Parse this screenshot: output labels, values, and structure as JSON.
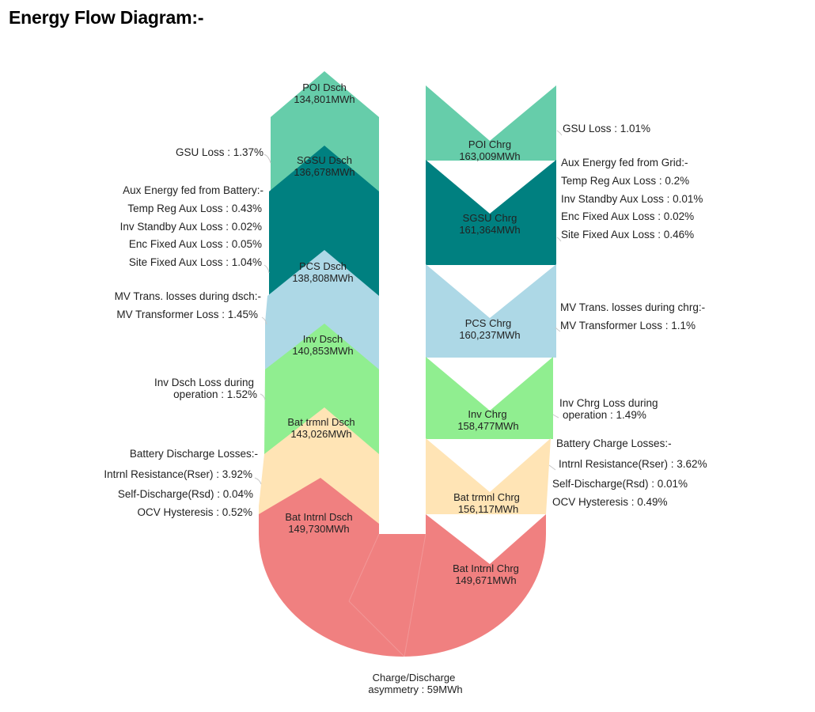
{
  "title": "Energy Flow Diagram:-",
  "colors": {
    "poi": "#66CDAA",
    "sgsu": "#008080",
    "pcs": "#ADD8E6",
    "inv": "#90EE90",
    "bat_trmnl": "#FFE4B5",
    "bat_intrnl": "#F08080"
  },
  "discharge_blocks": [
    {
      "name": "POI Dsch",
      "value": "134,801MWh"
    },
    {
      "name": "SGSU Dsch",
      "value": "136,678MWh"
    },
    {
      "name": "PCS Dsch",
      "value": "138,808MWh"
    },
    {
      "name": "Inv Dsch",
      "value": "140,853MWh"
    },
    {
      "name": "Bat trmnl Dsch",
      "value": "143,026MWh"
    },
    {
      "name": "Bat Intrnl Dsch",
      "value": "149,730MWh"
    }
  ],
  "charge_blocks": [
    {
      "name": "POI Chrg",
      "value": "163,009MWh"
    },
    {
      "name": "SGSU Chrg",
      "value": "161,364MWh"
    },
    {
      "name": "PCS Chrg",
      "value": "160,237MWh"
    },
    {
      "name": "Inv Chrg",
      "value": "158,477MWh"
    },
    {
      "name": "Bat trmnl Chrg",
      "value": "156,117MWh"
    },
    {
      "name": "Bat Intrnl Chrg",
      "value": "149,671MWh"
    }
  ],
  "discharge_annotations": [
    "GSU Loss : 1.37%",
    "Aux Energy fed from Battery:-",
    "Temp Reg Aux Loss : 0.43%",
    "Inv Standby Aux Loss : 0.02%",
    "Enc Fixed Aux Loss : 0.05%",
    "Site Fixed Aux Loss : 1.04%",
    "MV Trans. losses during dsch:-",
    "MV Transformer Loss : 1.45%",
    "Inv Dsch Loss during",
    "operation : 1.52%",
    "Battery Discharge Losses:-",
    "Intrnl Resistance(Rser) : 3.92%",
    "Self-Discharge(Rsd) : 0.04%",
    "OCV Hysteresis : 0.52%"
  ],
  "charge_annotations": [
    "GSU Loss : 1.01%",
    "Aux Energy fed from Grid:-",
    "Temp Reg Aux Loss : 0.2%",
    "Inv Standby Aux Loss : 0.01%",
    "Enc Fixed Aux Loss : 0.02%",
    "Site Fixed Aux Loss : 0.46%",
    "MV Trans. losses during chrg:-",
    "MV Transformer Loss : 1.1%",
    "Inv Chrg Loss during",
    "operation : 1.49%",
    "Battery Charge Losses:-",
    "Intrnl Resistance(Rser) : 3.62%",
    "Self-Discharge(Rsd) : 0.01%",
    "OCV Hysteresis : 0.49%"
  ],
  "asymmetry": {
    "line1": "Charge/Discharge",
    "line2": "asymmetry : 59MWh"
  }
}
